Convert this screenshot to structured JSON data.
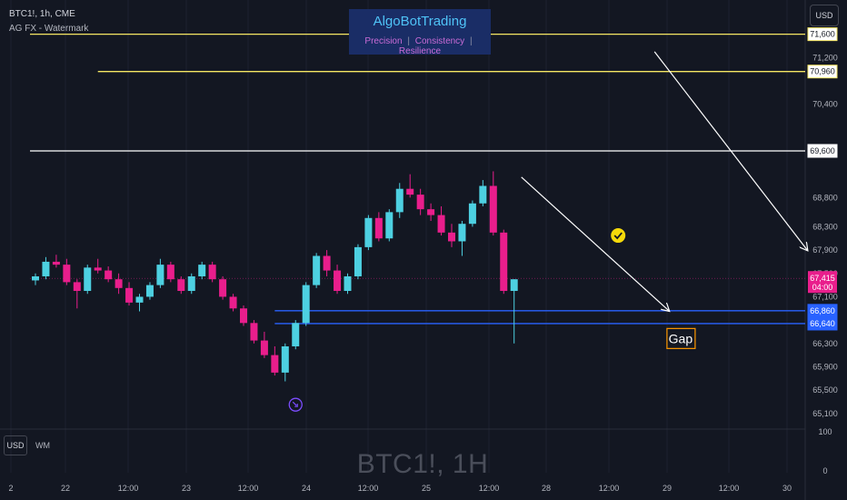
{
  "chart_data": {
    "type": "candlestick",
    "symbol_header": "BTC1!, 1h, CME",
    "study_label": "AG FX - Watermark",
    "brand": {
      "title": "AlgoBotTrading",
      "taglines": [
        "Precision",
        "Consistency",
        "Resilience"
      ],
      "separator": "|"
    },
    "watermark": "BTC1!, 1H",
    "currency": "USD",
    "indicator_label": "WM",
    "y_ticks": [
      71600,
      71200,
      70960,
      70400,
      69600,
      68800,
      68300,
      67900,
      67500,
      67100,
      66860,
      66640,
      66300,
      65900,
      65500,
      65100
    ],
    "x_ticks": [
      "2",
      "22",
      "12:00",
      "23",
      "12:00",
      "24",
      "12:00",
      "25",
      "12:00",
      "28",
      "12:00",
      "29",
      "12:00",
      "30"
    ],
    "sub_pane_ticks": [
      "100",
      "0"
    ],
    "price_range": [
      65050,
      71750
    ],
    "current_price": {
      "value": "67,415",
      "countdown": "04:00"
    },
    "horizontal_levels": [
      {
        "price": 71600,
        "label": "71,600",
        "color": "#f5e663",
        "start_bar": -1
      },
      {
        "price": 70960,
        "label": "70,960",
        "color": "#f5e663",
        "start_bar": 6
      },
      {
        "price": 69600,
        "label": "69,600",
        "color": "#ffffff",
        "start_bar": -1
      },
      {
        "price": 66860,
        "label": "66,860",
        "color": "#2962ff",
        "start_bar": 23
      },
      {
        "price": 66640,
        "label": "66,640",
        "color": "#2962ff",
        "start_bar": 23
      }
    ],
    "gap_annotation": "Gap",
    "colors": {
      "up": "#4dd0e1",
      "down": "#e91e8c",
      "background": "#131722",
      "text": "#b2b5be",
      "price_line": "#e91e8c"
    },
    "candles": [
      [
        67380,
        67500,
        67300,
        67450
      ],
      [
        67450,
        67780,
        67400,
        67700
      ],
      [
        67700,
        67820,
        67600,
        67650
      ],
      [
        67650,
        67750,
        67300,
        67350
      ],
      [
        67350,
        67400,
        66900,
        67200
      ],
      [
        67200,
        67650,
        67150,
        67600
      ],
      [
        67600,
        67750,
        67500,
        67550
      ],
      [
        67550,
        67620,
        67350,
        67400
      ],
      [
        67400,
        67500,
        67150,
        67250
      ],
      [
        67250,
        67350,
        66950,
        67000
      ],
      [
        67000,
        67150,
        66850,
        67100
      ],
      [
        67100,
        67350,
        67050,
        67300
      ],
      [
        67300,
        67750,
        67250,
        67650
      ],
      [
        67650,
        67700,
        67350,
        67400
      ],
      [
        67400,
        67450,
        67150,
        67200
      ],
      [
        67200,
        67500,
        67150,
        67450
      ],
      [
        67450,
        67700,
        67400,
        67650
      ],
      [
        67650,
        67700,
        67350,
        67400
      ],
      [
        67400,
        67450,
        67050,
        67100
      ],
      [
        67100,
        67150,
        66850,
        66900
      ],
      [
        66900,
        66950,
        66600,
        66650
      ],
      [
        66650,
        66700,
        66300,
        66350
      ],
      [
        66350,
        66500,
        66050,
        66100
      ],
      [
        66100,
        66250,
        65750,
        65800
      ],
      [
        65800,
        66300,
        65650,
        66250
      ],
      [
        66250,
        66700,
        66200,
        66650
      ],
      [
        66650,
        67350,
        66600,
        67300
      ],
      [
        67300,
        67850,
        67250,
        67800
      ],
      [
        67800,
        67900,
        67450,
        67550
      ],
      [
        67550,
        67650,
        67150,
        67200
      ],
      [
        67200,
        67500,
        67150,
        67450
      ],
      [
        67450,
        68000,
        67400,
        67950
      ],
      [
        67950,
        68500,
        67900,
        68450
      ],
      [
        68450,
        68550,
        68050,
        68100
      ],
      [
        68100,
        68600,
        68050,
        68550
      ],
      [
        68550,
        69050,
        68450,
        68950
      ],
      [
        68950,
        69200,
        68800,
        68850
      ],
      [
        68850,
        68950,
        68500,
        68600
      ],
      [
        68600,
        68700,
        68400,
        68500
      ],
      [
        68500,
        68650,
        68150,
        68200
      ],
      [
        68200,
        68350,
        67950,
        68050
      ],
      [
        68050,
        68400,
        67800,
        68350
      ],
      [
        68350,
        68750,
        68300,
        68700
      ],
      [
        68700,
        69100,
        68650,
        69000
      ],
      [
        69000,
        69250,
        68150,
        68200
      ],
      [
        68200,
        68250,
        67150,
        67200
      ],
      [
        67200,
        67400,
        66300,
        67400
      ]
    ]
  }
}
